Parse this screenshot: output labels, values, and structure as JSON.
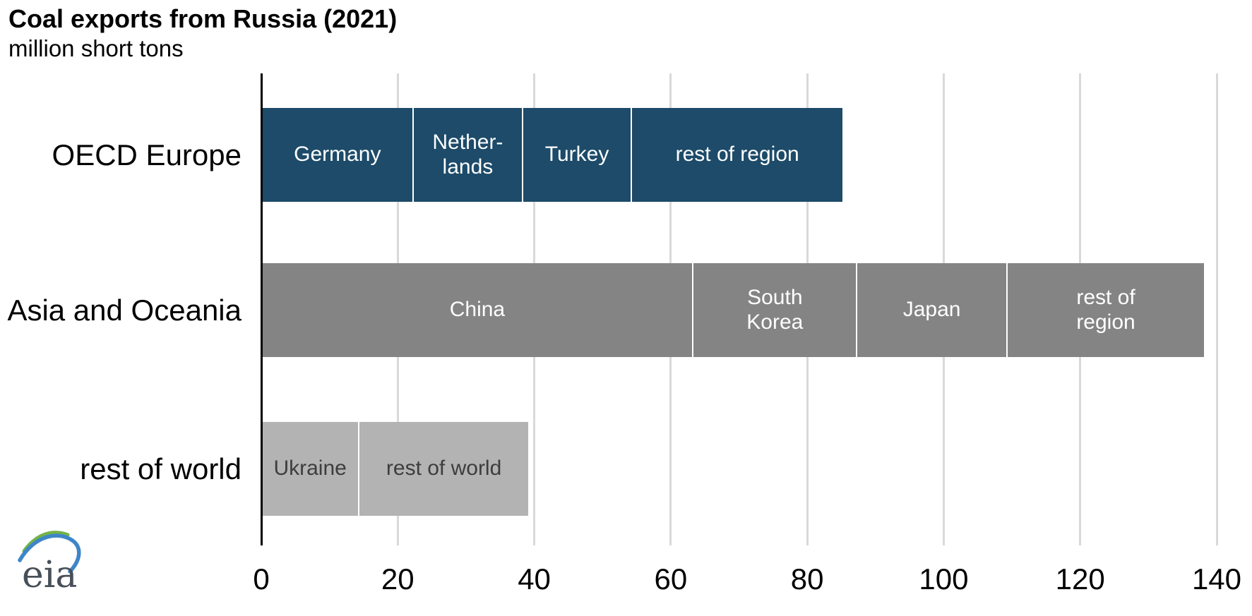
{
  "header": {
    "title": "Coal exports from Russia (2021)",
    "subtitle": "million short tons"
  },
  "logo": {
    "text": "eia"
  },
  "colors": {
    "oecd_europe_bar": "#1d4b69",
    "asia_oceania_bar": "#848484",
    "rest_of_world_bar": "#b3b3b3",
    "gridline": "#d9d9d9",
    "axis": "#000000",
    "segment_divider": "#ffffff",
    "logo_text": "#474f58",
    "logo_arc_yellow": "#f2c63c",
    "logo_arc_green": "#74b24a",
    "logo_arc_blue": "#3e86c8"
  },
  "chart_data": {
    "type": "bar",
    "orientation": "horizontal",
    "stacked": true,
    "title": "Coal exports from Russia (2021)",
    "subtitle": "million short tons",
    "unit": "million short tons",
    "xlabel": "",
    "ylabel": "",
    "xlim": [
      0,
      140
    ],
    "xticks": [
      0,
      20,
      40,
      60,
      80,
      100,
      120,
      140
    ],
    "grid": true,
    "categories": [
      "OECD Europe",
      "Asia and Oceania",
      "rest of world"
    ],
    "rows": [
      {
        "category": "OECD Europe",
        "color": "#1d4b69",
        "label_color": "#ffffff",
        "segments": [
          {
            "label": "Germany",
            "display": "Germany",
            "value": 22
          },
          {
            "label": "Netherlands",
            "display": "Nether-\nlands",
            "value": 16
          },
          {
            "label": "Turkey",
            "display": "Turkey",
            "value": 16
          },
          {
            "label": "rest of region",
            "display": "rest of region",
            "value": 31
          }
        ]
      },
      {
        "category": "Asia and Oceania",
        "color": "#848484",
        "label_color": "#ffffff",
        "segments": [
          {
            "label": "China",
            "display": "China",
            "value": 63
          },
          {
            "label": "South Korea",
            "display": "South\nKorea",
            "value": 24
          },
          {
            "label": "Japan",
            "display": "Japan",
            "value": 22
          },
          {
            "label": "rest of region",
            "display": "rest of\nregion",
            "value": 29
          }
        ]
      },
      {
        "category": "rest of world",
        "color": "#b3b3b3",
        "label_color": "#3d3d3d",
        "segments": [
          {
            "label": "Ukraine",
            "display": "Ukraine",
            "value": 14
          },
          {
            "label": "rest of world",
            "display": "rest of world",
            "value": 25
          }
        ]
      }
    ]
  }
}
